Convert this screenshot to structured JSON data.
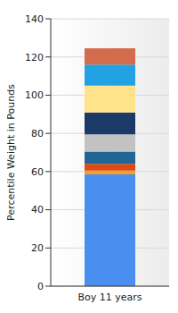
{
  "chart_data": {
    "type": "bar",
    "stacked": true,
    "categories": [
      "Boy 11 years"
    ],
    "y_label": "Percentile Weight in Pounds",
    "series": [
      {
        "color": "#4a8ef0",
        "values": [
          58.5
        ]
      },
      {
        "color": "#f0a030",
        "values": [
          2
        ]
      },
      {
        "color": "#e04a12",
        "values": [
          3.5
        ]
      },
      {
        "color": "#1f6694",
        "values": [
          6.5
        ]
      },
      {
        "color": "#c2c2c2",
        "values": [
          9
        ]
      },
      {
        "color": "#1c3a68",
        "values": [
          11.5
        ]
      },
      {
        "color": "#ffe38a",
        "values": [
          14
        ]
      },
      {
        "color": "#22a2e2",
        "values": [
          11
        ]
      },
      {
        "color": "#d26c4c",
        "values": [
          8.5
        ]
      }
    ],
    "ylim": [
      0,
      140
    ],
    "yticks": [
      0,
      20,
      40,
      60,
      80,
      100,
      120,
      140
    ],
    "grid": true
  }
}
